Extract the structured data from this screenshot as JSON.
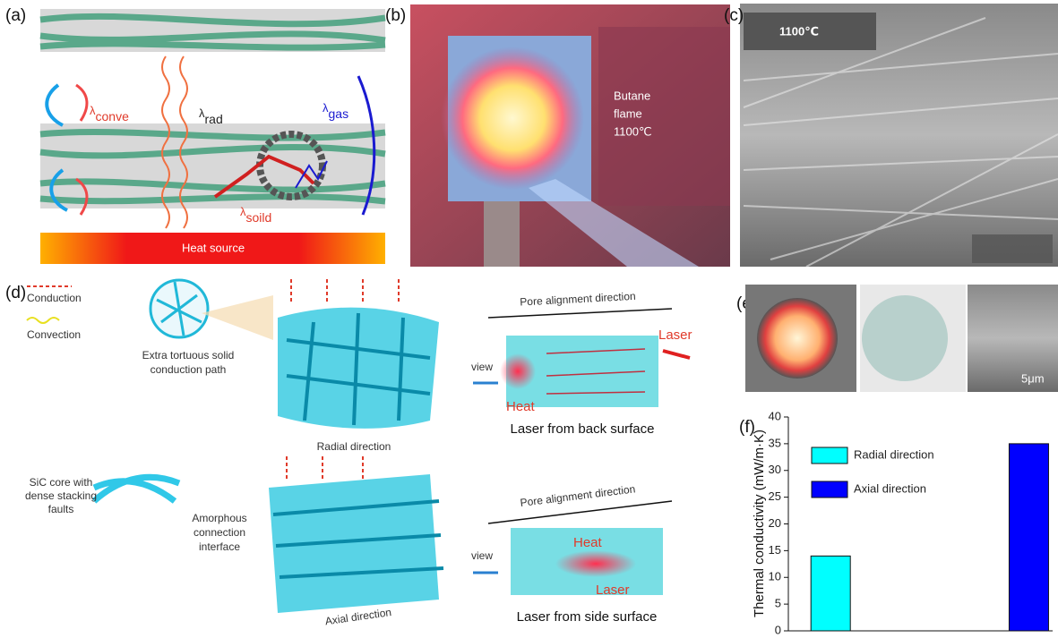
{
  "panel_labels": [
    "(a)",
    "(b)",
    "(c)",
    "(d)",
    "(e)",
    "(f)"
  ],
  "panel_a": {
    "conve": {
      "symbol": "λ",
      "subscript": "conve"
    },
    "rad": {
      "symbol": "λ",
      "subscript": "rad"
    },
    "gas": {
      "symbol": "λ",
      "subscript": "gas"
    },
    "soild": {
      "symbol": "λ",
      "subscript": "soild"
    },
    "heat_source": "Heat source"
  },
  "panel_b": {
    "lines": [
      "Butane",
      "flame",
      "1100℃"
    ]
  },
  "panel_c": {
    "label": "1100℃"
  },
  "panel_d": {
    "legend": [
      "Conduction",
      "Convection"
    ],
    "tortuous": [
      "Extra tortuous solid",
      "conduction path"
    ],
    "radial": "Radial direction",
    "top_pore": "Pore alignment direction",
    "top_laser": "Laser",
    "top_view": "view",
    "top_heat": "Heat",
    "top_caption": "Laser from back surface",
    "sic": [
      "SiC core with",
      "dense stacking",
      "faults"
    ],
    "amorphous": [
      "Amorphous",
      "connection",
      "interface"
    ],
    "axial": "Axial direction",
    "bottom_pore": "Pore alignment direction",
    "bottom_view": "view",
    "bottom_heat": "Heat",
    "bottom_laser": "Laser",
    "bottom_caption": "Laser from side surface"
  },
  "panel_e": {
    "scale": "5μm"
  },
  "chart_data": {
    "type": "bar",
    "y_label": "Thermal conductivity (mW/m·K)",
    "categories": [
      null,
      null
    ],
    "series": [
      {
        "name": "Radial direction",
        "color": "#00ffff",
        "values": [
          14,
          null
        ]
      },
      {
        "name": "Axial direction",
        "color": "#0000ff",
        "values": [
          null,
          35
        ]
      }
    ],
    "ylim": [
      0,
      40
    ],
    "yticks": [
      0,
      5,
      10,
      15,
      20,
      25,
      30,
      35,
      40
    ],
    "legend": "upper-left"
  }
}
